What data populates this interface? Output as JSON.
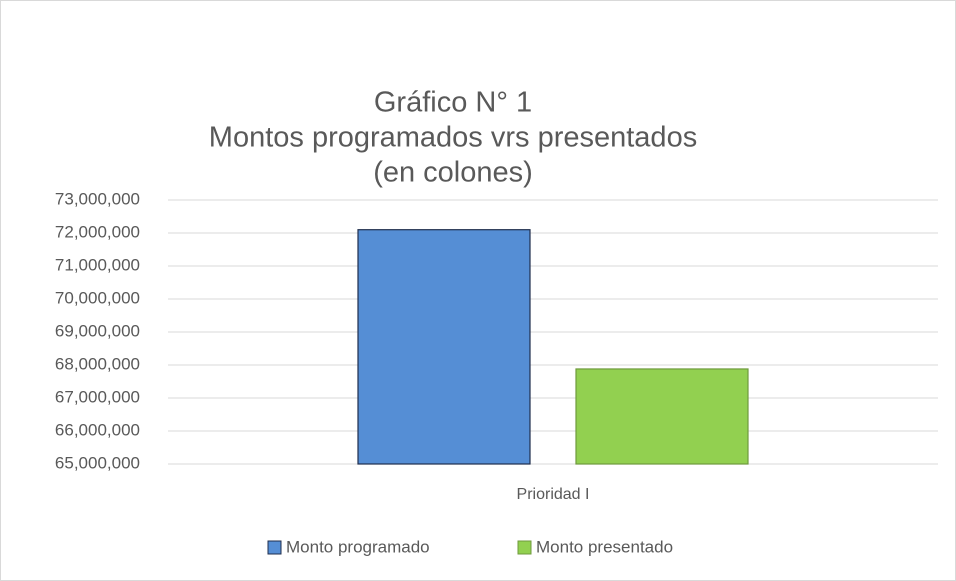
{
  "chart_data": {
    "type": "bar",
    "title": [
      "Gráfico N° 1",
      "Montos programados vrs presentados",
      "(en colones)"
    ],
    "categories": [
      "Prioridad I"
    ],
    "series": [
      {
        "name": "Monto programado",
        "color": "#558ed5",
        "edgecolor": "#1f2d4d",
        "values": [
          72100000
        ]
      },
      {
        "name": "Monto presentado",
        "color": "#92d050",
        "edgecolor": "#6f9a3c",
        "values": [
          67880000
        ]
      }
    ],
    "ylim": [
      65000000,
      73000000
    ],
    "yticks": [
      {
        "value": 65000000,
        "label": "65,000,000"
      },
      {
        "value": 66000000,
        "label": "66,000,000"
      },
      {
        "value": 67000000,
        "label": "67,000,000"
      },
      {
        "value": 68000000,
        "label": "68,000,000"
      },
      {
        "value": 69000000,
        "label": "69,000,000"
      },
      {
        "value": 70000000,
        "label": "70,000,000"
      },
      {
        "value": 71000000,
        "label": "71,000,000"
      },
      {
        "value": 72000000,
        "label": "72,000,000"
      },
      {
        "value": 73000000,
        "label": "73,000,000"
      }
    ],
    "grid": true,
    "legend": "bottom"
  }
}
